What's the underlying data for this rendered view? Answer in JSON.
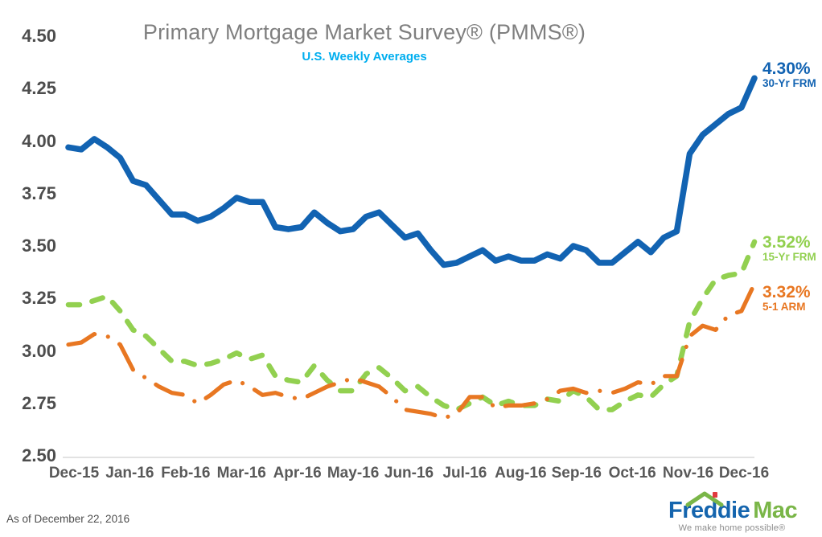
{
  "title": "Primary Mortgage Market Survey® (PMMS®)",
  "subtitle": "U.S. Weekly Averages",
  "footer": "As of December 22, 2016",
  "palette": {
    "blue_30yr": "#1263B2",
    "green_15yr": "#92D050",
    "orange_arm": "#E87722",
    "subtitle_blue": "#00AEEF",
    "title_gray": "#7F7F7F",
    "axis_text_gray": "#4D4D4D",
    "axis_line_gray": "#D9D9D9"
  },
  "annotations": {
    "frm30": {
      "value": "4.30%",
      "label": "30-Yr FRM",
      "color": "#1263B2"
    },
    "frm15": {
      "value": "3.52%",
      "label": "15-Yr FRM",
      "color": "#92D050"
    },
    "arm51": {
      "value": "3.32%",
      "label": "5-1 ARM",
      "color": "#E87722"
    }
  },
  "logo": {
    "word1": "Freddie",
    "word2": "Mac",
    "tagline": "We make home possible®",
    "roof_icon": "roof-icon",
    "blue": "#1565AE",
    "green": "#7AB648",
    "chimney_red": "#E03A3E"
  },
  "chart_data": {
    "type": "line",
    "title": "Primary Mortgage Market Survey® (PMMS®)",
    "subtitle": "U.S. Weekly Averages",
    "frequency": "weekly",
    "x_range_note": "Weekly values from Dec 17, 2015 through Dec 22, 2016",
    "x_tick_labels": [
      "Dec-15",
      "Jan-16",
      "Feb-16",
      "Mar-16",
      "Apr-16",
      "May-16",
      "Jun-16",
      "Jul-16",
      "Aug-16",
      "Sep-16",
      "Oct-16",
      "Nov-16",
      "Dec-16"
    ],
    "y_tick_labels": [
      "4.50",
      "4.25",
      "4.00",
      "3.75",
      "3.50",
      "3.25",
      "3.00",
      "2.75",
      "2.50"
    ],
    "ylim": [
      2.5,
      4.5
    ],
    "y_step": 0.25,
    "grid": false,
    "legend_position": "right-end-labels",
    "series": [
      {
        "name": "30-Yr FRM",
        "color": "#1263B2",
        "style": "solid",
        "final_label": "4.30%",
        "values": [
          3.97,
          3.96,
          4.01,
          3.97,
          3.92,
          3.81,
          3.79,
          3.72,
          3.65,
          3.65,
          3.62,
          3.64,
          3.68,
          3.73,
          3.71,
          3.71,
          3.59,
          3.58,
          3.59,
          3.66,
          3.61,
          3.57,
          3.58,
          3.64,
          3.66,
          3.6,
          3.54,
          3.56,
          3.48,
          3.41,
          3.42,
          3.45,
          3.48,
          3.43,
          3.45,
          3.43,
          3.43,
          3.46,
          3.44,
          3.5,
          3.48,
          3.42,
          3.42,
          3.47,
          3.52,
          3.47,
          3.54,
          3.57,
          3.94,
          4.03,
          4.08,
          4.13,
          4.16,
          4.3
        ]
      },
      {
        "name": "15-Yr FRM",
        "color": "#92D050",
        "style": "dashed",
        "final_label": "3.52%",
        "values": [
          3.22,
          3.22,
          3.24,
          3.26,
          3.19,
          3.1,
          3.07,
          3.01,
          2.95,
          2.95,
          2.93,
          2.94,
          2.96,
          2.99,
          2.96,
          2.98,
          2.88,
          2.86,
          2.85,
          2.93,
          2.86,
          2.81,
          2.81,
          2.89,
          2.92,
          2.87,
          2.81,
          2.83,
          2.78,
          2.74,
          2.72,
          2.75,
          2.78,
          2.74,
          2.76,
          2.74,
          2.74,
          2.77,
          2.76,
          2.81,
          2.78,
          2.72,
          2.72,
          2.76,
          2.79,
          2.78,
          2.84,
          2.88,
          3.14,
          3.25,
          3.34,
          3.36,
          3.37,
          3.52
        ]
      },
      {
        "name": "5-1 ARM",
        "color": "#E87722",
        "style": "dash-dot",
        "final_label": "3.32%",
        "values": [
          3.03,
          3.04,
          3.08,
          3.07,
          3.03,
          2.91,
          2.87,
          2.83,
          2.8,
          2.79,
          2.75,
          2.79,
          2.84,
          2.86,
          2.83,
          2.79,
          2.8,
          2.78,
          2.77,
          2.8,
          2.83,
          2.85,
          2.87,
          2.85,
          2.83,
          2.78,
          2.72,
          2.71,
          2.7,
          2.68,
          2.7,
          2.78,
          2.78,
          2.73,
          2.74,
          2.74,
          2.75,
          2.77,
          2.81,
          2.82,
          2.8,
          2.81,
          2.8,
          2.82,
          2.85,
          2.84,
          2.88,
          2.88,
          3.07,
          3.12,
          3.1,
          3.17,
          3.19,
          3.32
        ]
      }
    ]
  }
}
